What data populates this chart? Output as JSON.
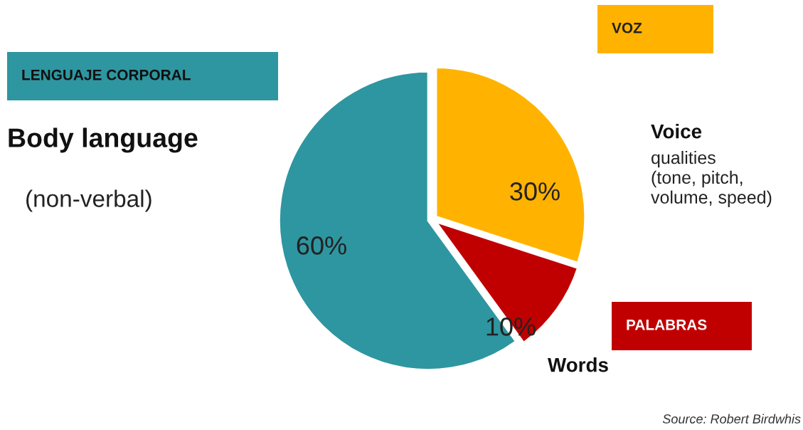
{
  "chart_data": {
    "type": "pie",
    "categories": [
      "Voice",
      "Words",
      "Body language"
    ],
    "values": [
      30,
      10,
      60
    ],
    "colors": [
      "#ffb300",
      "#c00000",
      "#2e96a0"
    ],
    "value_labels": [
      "30%",
      "10%",
      "60%"
    ],
    "annotations": [
      "VOZ",
      "PALABRAS",
      "LENGUAJE CORPORAL",
      "qualities\n(tone, pitch,\nvolume, speed)",
      "(non-verbal)",
      "Source: Robert Birdwhis"
    ]
  }
}
